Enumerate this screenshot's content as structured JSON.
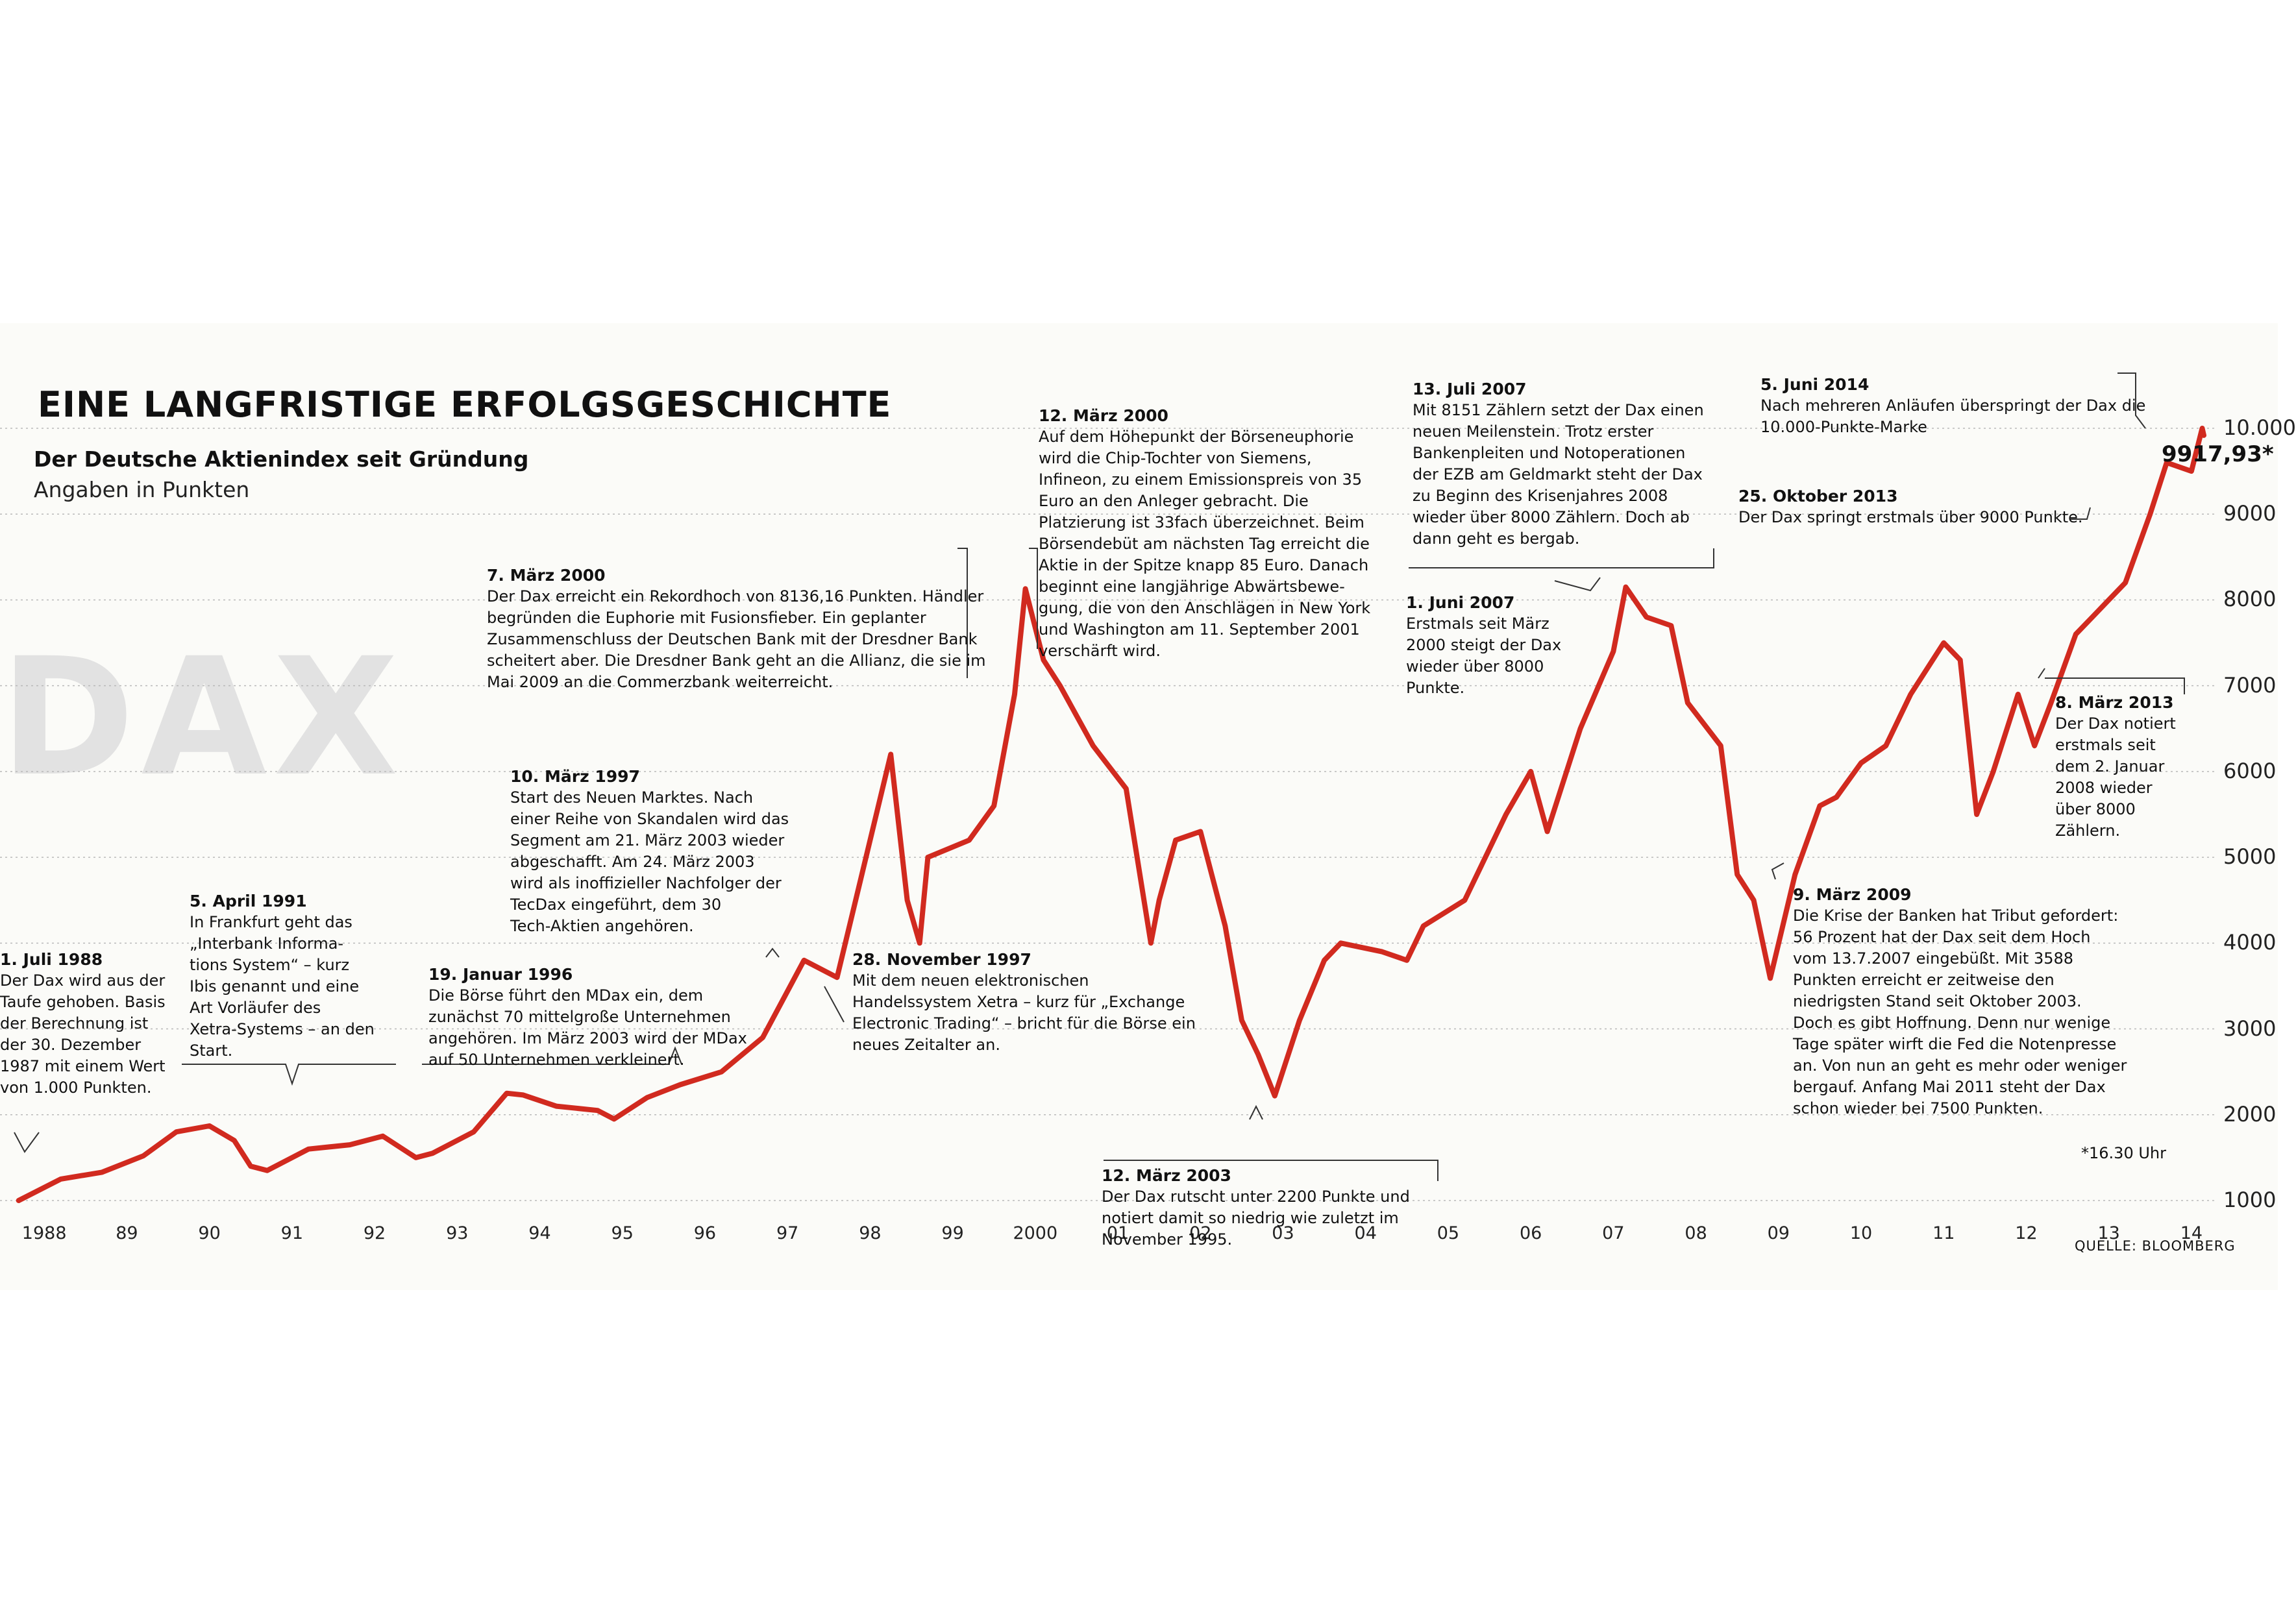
{
  "chart_data": {
    "type": "line",
    "title": "EINE LANGFRISTIGE ERFOLGSGESCHICHTE",
    "subtitle": "Der Deutsche Aktienindex seit Gründung",
    "ylabel": "Angaben in Punkten",
    "watermark": "DAX",
    "ylim": [
      1000,
      10000
    ],
    "y_ticks": [
      "10.000",
      "9000",
      "8000",
      "7000",
      "6000",
      "5000",
      "4000",
      "3000",
      "2000",
      "1000"
    ],
    "x_ticks": [
      "1988",
      "89",
      "90",
      "91",
      "92",
      "93",
      "94",
      "95",
      "96",
      "97",
      "98",
      "99",
      "2000",
      "01",
      "02",
      "03",
      "04",
      "05",
      "06",
      "07",
      "08",
      "09",
      "10",
      "11",
      "12",
      "13",
      "14"
    ],
    "grid": true,
    "series": [
      {
        "name": "",
        "color": "#d12a1f",
        "points": [
          [
            1987.99,
            1000
          ],
          [
            1988.5,
            1250
          ],
          [
            1989.0,
            1330
          ],
          [
            1989.5,
            1520
          ],
          [
            1989.9,
            1800
          ],
          [
            1990.3,
            1870
          ],
          [
            1990.6,
            1700
          ],
          [
            1990.8,
            1400
          ],
          [
            1991.0,
            1350
          ],
          [
            1991.5,
            1600
          ],
          [
            1992.0,
            1650
          ],
          [
            1992.4,
            1750
          ],
          [
            1992.8,
            1500
          ],
          [
            1993.0,
            1550
          ],
          [
            1993.5,
            1800
          ],
          [
            1993.9,
            2250
          ],
          [
            1994.1,
            2230
          ],
          [
            1994.5,
            2100
          ],
          [
            1995.0,
            2050
          ],
          [
            1995.2,
            1950
          ],
          [
            1995.6,
            2200
          ],
          [
            1996.0,
            2350
          ],
          [
            1996.5,
            2500
          ],
          [
            1997.0,
            2900
          ],
          [
            1997.5,
            3800
          ],
          [
            1997.9,
            3600
          ],
          [
            1998.2,
            4800
          ],
          [
            1998.55,
            6200
          ],
          [
            1998.75,
            4500
          ],
          [
            1998.9,
            4000
          ],
          [
            1999.0,
            5000
          ],
          [
            1999.5,
            5200
          ],
          [
            1999.8,
            5600
          ],
          [
            2000.05,
            6900
          ],
          [
            2000.18,
            8130
          ],
          [
            2000.4,
            7300
          ],
          [
            2000.6,
            7000
          ],
          [
            2001.0,
            6300
          ],
          [
            2001.4,
            5800
          ],
          [
            2001.7,
            4000
          ],
          [
            2001.8,
            4500
          ],
          [
            2002.0,
            5200
          ],
          [
            2002.3,
            5300
          ],
          [
            2002.6,
            4200
          ],
          [
            2002.8,
            3100
          ],
          [
            2003.0,
            2700
          ],
          [
            2003.2,
            2220
          ],
          [
            2003.5,
            3100
          ],
          [
            2003.8,
            3800
          ],
          [
            2004.0,
            4000
          ],
          [
            2004.5,
            3900
          ],
          [
            2004.8,
            3800
          ],
          [
            2005.0,
            4200
          ],
          [
            2005.5,
            4500
          ],
          [
            2006.0,
            5500
          ],
          [
            2006.3,
            6000
          ],
          [
            2006.5,
            5300
          ],
          [
            2006.9,
            6500
          ],
          [
            2007.3,
            7400
          ],
          [
            2007.45,
            8150
          ],
          [
            2007.7,
            7800
          ],
          [
            2008.0,
            7700
          ],
          [
            2008.2,
            6800
          ],
          [
            2008.6,
            6300
          ],
          [
            2008.8,
            4800
          ],
          [
            2009.0,
            4500
          ],
          [
            2009.2,
            3590
          ],
          [
            2009.5,
            4800
          ],
          [
            2009.8,
            5600
          ],
          [
            2010.0,
            5700
          ],
          [
            2010.3,
            6100
          ],
          [
            2010.6,
            6300
          ],
          [
            2010.9,
            6900
          ],
          [
            2011.3,
            7500
          ],
          [
            2011.5,
            7300
          ],
          [
            2011.7,
            5500
          ],
          [
            2011.9,
            6000
          ],
          [
            2012.2,
            6900
          ],
          [
            2012.4,
            6300
          ],
          [
            2012.6,
            6800
          ],
          [
            2012.9,
            7600
          ],
          [
            2013.1,
            7800
          ],
          [
            2013.3,
            8000
          ],
          [
            2013.5,
            8200
          ],
          [
            2013.8,
            9000
          ],
          [
            2014.0,
            9600
          ],
          [
            2014.3,
            9500
          ],
          [
            2014.43,
            10000
          ],
          [
            2014.45,
            9917.93
          ]
        ]
      }
    ],
    "annotations": [
      {
        "id": "a1988",
        "date": "1. Juli 1988",
        "text": "Der Dax wird aus der\nTaufe gehoben. Basis\nder Berechnung ist\nder 30. Dezember\n1987 mit einem Wert\nvon 1.000 Punkten."
      },
      {
        "id": "a1991",
        "date": "5. April 1991",
        "text": "In Frankfurt geht das\n„Interbank Informa-\ntions System“ – kurz\nIbis genannt und eine\nArt Vorläufer des\nXetra-Systems – an den\nStart."
      },
      {
        "id": "a1996",
        "date": "19. Januar 1996",
        "text": "Die Börse führt den MDax ein, dem\nzunächst 70 mittelgroße Unternehmen\nangehören. Im März 2003 wird der MDax\nauf 50 Unternehmen verkleinert."
      },
      {
        "id": "a1997",
        "date": "10. März 1997",
        "text": "Start des Neuen Marktes. Nach\neiner Reihe von Skandalen wird das\nSegment am 21. März 2003 wieder\nabgeschafft. Am 24. März 2003\nwird als inoffizieller Nachfolger der\nTecDax eingeführt, dem 30\nTech-Aktien angehören."
      },
      {
        "id": "a1997b",
        "date": "28. November 1997",
        "text": "Mit dem neuen elektronischen\nHandelssystem Xetra – kurz für „Exchange\nElectronic Trading“ – bricht für die Börse ein\nneues Zeitalter an."
      },
      {
        "id": "a2000a",
        "date": "7. März 2000",
        "text": "Der Dax erreicht ein Rekordhoch von 8136,16 Punkten. Händler\nbegründen die Euphorie mit Fusionsfieber. Ein geplanter\nZusammenschluss der Deutschen Bank mit der Dresdner Bank\nscheitert aber. Die Dresdner Bank geht an die Allianz, die sie im\nMai 2009 an die Commerzbank weiterreicht."
      },
      {
        "id": "a2000b",
        "date": "12. März 2000",
        "text": "Auf dem Höhepunkt der Börseneuphorie\nwird die Chip-Tochter von Siemens,\nInfineon, zu einem Emissionspreis von 35\nEuro an den Anleger gebracht. Die\nPlatzierung ist 33fach überzeichnet. Beim\nBörsendebüt am nächsten Tag erreicht die\nAktie in der Spitze knapp 85 Euro. Danach\nbeginnt eine langjährige Abwärtsbewe-\ngung, die von den Anschlägen in New York\nund Washington am 11. September 2001\nverschärft wird."
      },
      {
        "id": "a2003",
        "date": "12. März 2003",
        "text": "Der Dax rutscht unter 2200 Punkte und\nnotiert damit so niedrig wie zuletzt im\nNovember 1995."
      },
      {
        "id": "a2007a",
        "date": "1. Juni 2007",
        "text": "Erstmals seit März\n2000 steigt der Dax\nwieder über 8000\nPunkte."
      },
      {
        "id": "a2007b",
        "date": "13. Juli 2007",
        "text": "Mit 8151 Zählern setzt der Dax einen\nneuen Meilenstein. Trotz erster\nBankenpleiten und Notoperationen\nder EZB am Geldmarkt steht der Dax\nzu Beginn des Krisenjahres 2008\nwieder über 8000 Zählern. Doch ab\ndann geht es bergab."
      },
      {
        "id": "a2009",
        "date": "9. März 2009",
        "text": "Die Krise der Banken hat Tribut gefordert:\n56 Prozent hat der Dax seit dem Hoch\nvom 13.7.2007 eingebüßt. Mit 3588\nPunkten erreicht er zeitweise den\nniedrigsten Stand seit Oktober 2003.\nDoch es gibt Hoffnung. Denn nur wenige\nTage später wirft die Fed die Notenpresse\nan. Von nun an geht es mehr oder weniger\nbergauf. Anfang Mai 2011 steht der Dax\nschon wieder bei 7500 Punkten."
      },
      {
        "id": "a2013a",
        "date": "8. März 2013",
        "text": "Der Dax notiert\nerstmals seit\ndem 2. Januar\n2008 wieder\nüber 8000\nZählern."
      },
      {
        "id": "a2013b",
        "date": "25. Oktober 2013",
        "text": "Der Dax springt erstmals über 9000 Punkte."
      },
      {
        "id": "a2014",
        "date": "5. Juni 2014",
        "text": "Nach mehreren Anläufen überspringt der Dax die\n10.000-Punkte-Marke"
      }
    ],
    "last_value_label": "9917,93*",
    "footnote": "*16.30 Uhr",
    "source": "QUELLE: BLOOMBERG"
  }
}
